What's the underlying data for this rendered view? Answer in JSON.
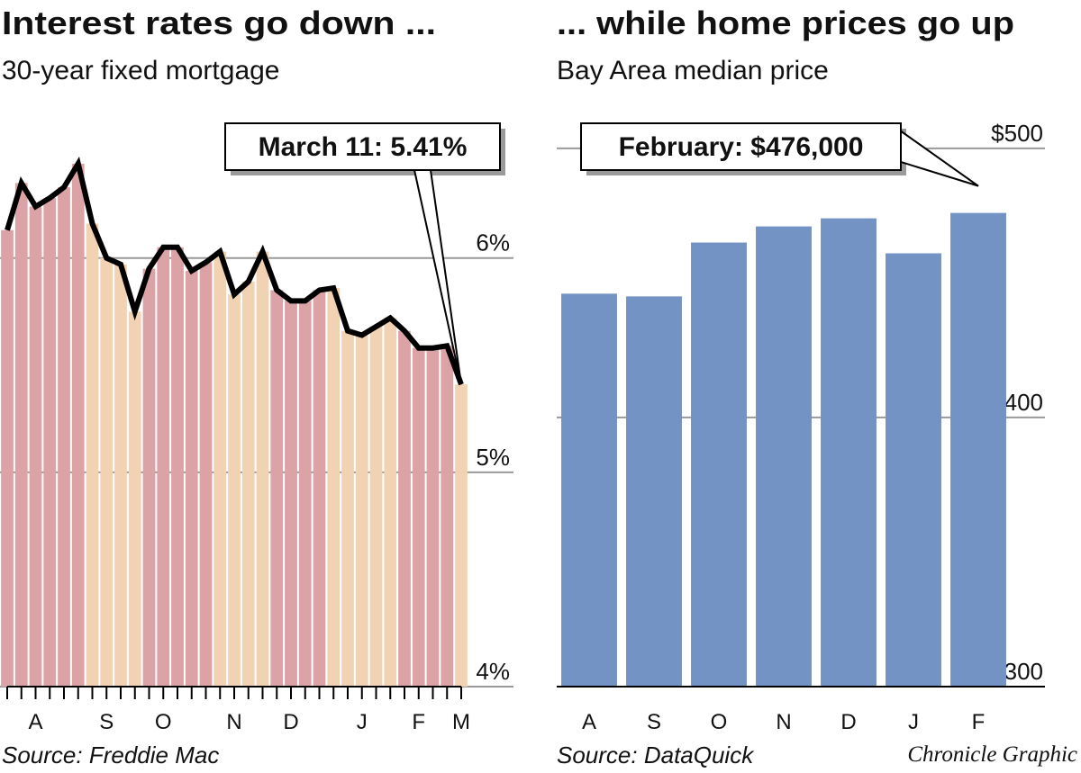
{
  "chart_data": [
    {
      "type": "line",
      "title": "Interest rates go down ...",
      "subtitle": "30-year fixed mortgage",
      "source": "Source: Freddie Mac",
      "annotation": "March 11: 5.41%",
      "categories": [
        null,
        null,
        "A",
        null,
        null,
        null,
        null,
        "S",
        null,
        null,
        null,
        "O",
        null,
        null,
        null,
        null,
        "N",
        null,
        null,
        null,
        "D",
        null,
        null,
        null,
        null,
        "J",
        null,
        null,
        null,
        "F",
        null,
        null,
        "M"
      ],
      "values": [
        6.13,
        6.35,
        6.24,
        6.28,
        6.33,
        6.44,
        6.16,
        6.0,
        5.97,
        5.75,
        5.95,
        6.05,
        6.05,
        5.94,
        5.98,
        6.03,
        5.83,
        5.89,
        6.03,
        5.85,
        5.8,
        5.8,
        5.85,
        5.86,
        5.66,
        5.64,
        5.68,
        5.72,
        5.66,
        5.58,
        5.58,
        5.59,
        5.41
      ],
      "bar_colors": [
        "#dba3a6",
        "#dba3a6",
        "#dba3a6",
        "#dba3a6",
        "#dba3a6",
        "#dba3a6",
        "#f1d3b3",
        "#f1d3b3",
        "#f1d3b3",
        "#f1d3b3",
        "#dba3a6",
        "#dba3a6",
        "#dba3a6",
        "#dba3a6",
        "#dba3a6",
        "#f1d3b3",
        "#f1d3b3",
        "#f1d3b3",
        "#f1d3b3",
        "#dba3a6",
        "#dba3a6",
        "#dba3a6",
        "#dba3a6",
        "#f1d3b3",
        "#f1d3b3",
        "#f1d3b3",
        "#f1d3b3",
        "#f1d3b3",
        "#dba3a6",
        "#dba3a6",
        "#dba3a6",
        "#dba3a6",
        "#f1d3b3"
      ],
      "color": "#000000",
      "ylim": [
        4,
        6.7
      ],
      "yticks": [
        {
          "value": 4,
          "label": "4%"
        },
        {
          "value": 5,
          "label": "5%"
        },
        {
          "value": 6,
          "label": "6%"
        }
      ],
      "grid": true
    },
    {
      "type": "bar",
      "title": "... while home prices go up",
      "subtitle": "Bay Area median price",
      "source": "Source: DataQuick",
      "annotation": "February: $476,000",
      "categories": [
        "A",
        "S",
        "O",
        "N",
        "D",
        "J",
        "F"
      ],
      "values": [
        446,
        445,
        465,
        471,
        474,
        461,
        476
      ],
      "color": "#7393c4",
      "ylim": [
        300,
        515
      ],
      "yticks": [
        300,
        400,
        {
          "value": 500,
          "label": "$500"
        }
      ],
      "grid": true
    }
  ],
  "credit": "Chronicle Graphic"
}
